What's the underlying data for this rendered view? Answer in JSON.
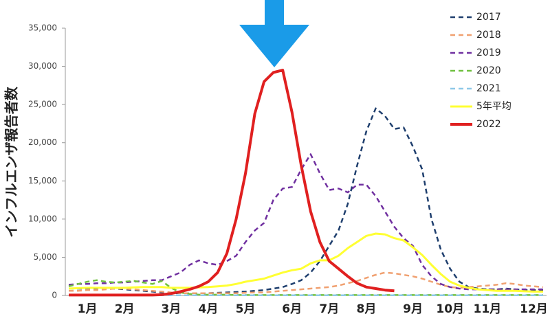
{
  "chart_data": {
    "type": "line",
    "y_label": "インフルエンザ報告者数",
    "categories": [
      null,
      null,
      "1月",
      null,
      null,
      null,
      "2月",
      null,
      null,
      null,
      null,
      "3月",
      null,
      null,
      null,
      "4月",
      null,
      null,
      null,
      "5月",
      null,
      null,
      null,
      null,
      "6月",
      null,
      null,
      null,
      "7月",
      null,
      null,
      null,
      "8月",
      null,
      null,
      null,
      null,
      "9月",
      null,
      null,
      null,
      "10月",
      null,
      null,
      null,
      "11月",
      null,
      null,
      null,
      null,
      "12月",
      null
    ],
    "ylim": [
      0,
      35000
    ],
    "yticks": [
      0,
      {
        "value": 5000,
        "label": "5,000"
      },
      {
        "value": 10000,
        "label": "10,000"
      },
      {
        "value": 15000,
        "label": "15,000"
      },
      {
        "value": 20000,
        "label": "20,000"
      },
      {
        "value": 25000,
        "label": "25,000"
      },
      {
        "value": 30000,
        "label": "30,000"
      },
      {
        "value": 35000,
        "label": "35,000"
      }
    ],
    "grid": false,
    "legend": "upper right",
    "series": [
      {
        "name": "2017",
        "color": "#1f3f6e",
        "style": "dashed",
        "linewidth": 2.5,
        "values": [
          900,
          900,
          900,
          900,
          900,
          900,
          800,
          700,
          600,
          500,
          400,
          300,
          300,
          300,
          300,
          300,
          350,
          400,
          450,
          500,
          600,
          700,
          900,
          1100,
          1500,
          2000,
          3000,
          4500,
          6500,
          8500,
          12000,
          17000,
          21500,
          24500,
          23500,
          21800,
          22000,
          19500,
          16500,
          10000,
          6000,
          3500,
          1800,
          1100,
          900,
          800,
          800,
          900,
          800,
          700,
          700,
          700
        ]
      },
      {
        "name": "2018",
        "color": "#f0a070",
        "style": "dashed",
        "linewidth": 2.5,
        "values": [
          600,
          600,
          700,
          700,
          800,
          900,
          900,
          800,
          700,
          600,
          500,
          400,
          300,
          300,
          300,
          300,
          300,
          300,
          300,
          350,
          400,
          400,
          500,
          600,
          700,
          800,
          900,
          1000,
          1100,
          1300,
          1600,
          1900,
          2300,
          2700,
          3000,
          2900,
          2700,
          2500,
          2200,
          1800,
          1400,
          1100,
          1000,
          1100,
          1200,
          1300,
          1400,
          1600,
          1500,
          1300,
          1200,
          1100
        ]
      },
      {
        "name": "2019",
        "color": "#7030a0",
        "style": "dashed",
        "linewidth": 2.5,
        "values": [
          1400,
          1500,
          1500,
          1600,
          1600,
          1700,
          1700,
          1800,
          1900,
          2000,
          2000,
          2500,
          3000,
          4000,
          4600,
          4200,
          4000,
          4500,
          5200,
          7000,
          8500,
          9500,
          12500,
          14000,
          14200,
          16500,
          18500,
          16000,
          13800,
          14000,
          13500,
          14500,
          14500,
          13000,
          11000,
          9000,
          7500,
          6500,
          4000,
          2500,
          1500,
          1100,
          900,
          800,
          800,
          800,
          800,
          800,
          800,
          800,
          800,
          800
        ]
      },
      {
        "name": "2020",
        "color": "#70c040",
        "style": "dashed",
        "linewidth": 2.5,
        "values": [
          1200,
          1500,
          1800,
          2000,
          1800,
          1700,
          1800,
          1900,
          1700,
          1500,
          1900,
          1000,
          400,
          200,
          100,
          100,
          100,
          100,
          50,
          50,
          50,
          50,
          50,
          50,
          50,
          50,
          50,
          50,
          50,
          50,
          50,
          50,
          50,
          50,
          50,
          50,
          50,
          50,
          50,
          50,
          50,
          50,
          50,
          50,
          50,
          50,
          50,
          50,
          50,
          50,
          50,
          50
        ]
      },
      {
        "name": "2021",
        "color": "#8ec8e8",
        "style": "dashed",
        "linewidth": 2.5,
        "values": [
          30,
          30,
          30,
          30,
          30,
          30,
          30,
          30,
          30,
          30,
          30,
          30,
          30,
          30,
          30,
          30,
          30,
          30,
          30,
          30,
          30,
          30,
          30,
          30,
          30,
          30,
          30,
          30,
          30,
          30,
          30,
          30,
          30,
          30,
          30,
          30,
          30,
          30,
          30,
          30,
          30,
          30,
          30,
          30,
          30,
          30,
          30,
          30,
          30,
          30,
          30,
          30
        ]
      },
      {
        "name": "5年平均",
        "color": "#ffff33",
        "style": "solid",
        "linewidth": 3,
        "values": [
          900,
          950,
          1000,
          1000,
          1000,
          1000,
          1000,
          1050,
          1100,
          1100,
          1100,
          1000,
          1000,
          1000,
          1050,
          1100,
          1200,
          1300,
          1500,
          1800,
          2000,
          2200,
          2600,
          3000,
          3300,
          3500,
          4200,
          4600,
          4600,
          5200,
          6200,
          7000,
          7800,
          8100,
          8000,
          7500,
          7200,
          6300,
          5300,
          4000,
          2800,
          1800,
          1300,
          1000,
          800,
          700,
          600,
          600,
          600,
          550,
          500,
          500
        ]
      },
      {
        "name": "2022",
        "color": "#e02020",
        "style": "solid",
        "linewidth": 4,
        "values": [
          50,
          50,
          50,
          50,
          50,
          50,
          50,
          50,
          50,
          50,
          100,
          250,
          500,
          800,
          1200,
          1800,
          3000,
          5500,
          10000,
          16000,
          23800,
          28000,
          29200,
          29500,
          24000,
          17000,
          11000,
          7000,
          4500,
          3500,
          2500,
          1600,
          1100,
          900,
          700,
          600,
          null,
          null,
          null,
          null,
          null,
          null,
          null,
          null,
          null,
          null,
          null,
          null,
          null,
          null,
          null,
          null
        ]
      }
    ]
  }
}
